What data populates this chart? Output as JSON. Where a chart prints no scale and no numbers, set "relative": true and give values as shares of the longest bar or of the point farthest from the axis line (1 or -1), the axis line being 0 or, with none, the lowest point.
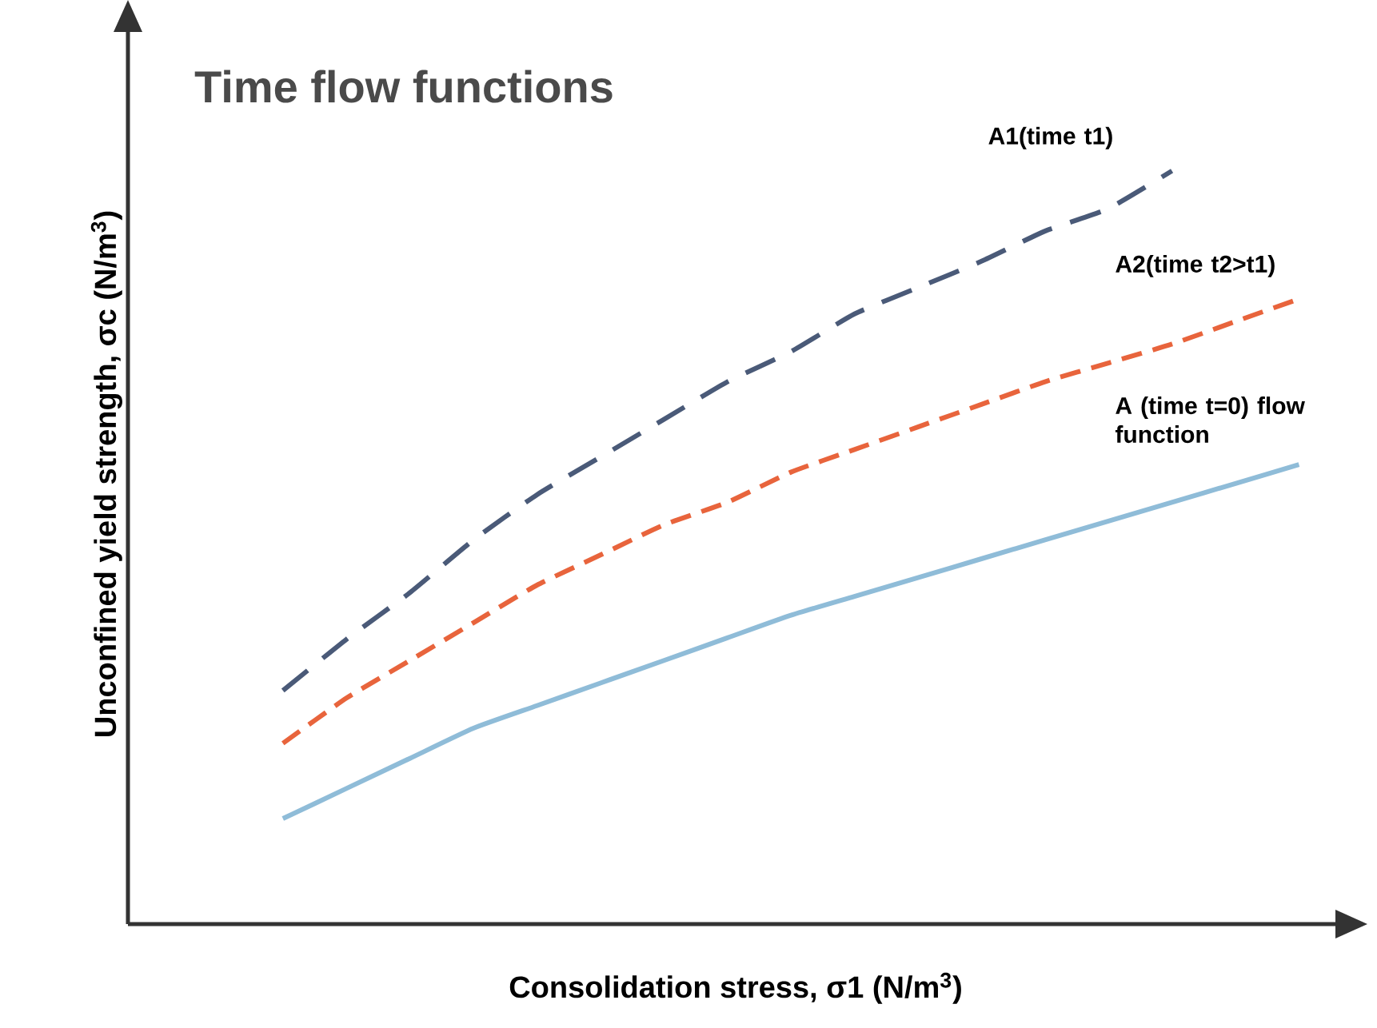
{
  "chart_data": {
    "type": "line",
    "title": "Time flow functions",
    "xlabel": "Consolidation stress, σ1 (N/m$^{3}$)",
    "ylabel": "Unconfined yield strength, σc (N/m$^{3}$)",
    "relative": true,
    "legend": false,
    "marker": "none",
    "categories": [
      null,
      null,
      null,
      null,
      null,
      null,
      null,
      null,
      null,
      null,
      null,
      null,
      null,
      null,
      null,
      null,
      null
    ],
    "series": [
      {
        "name": "A1(time t1)",
        "color": "#4a5a78",
        "line_style": "dashed",
        "values": [
          0.31,
          0.378,
          0.44,
          0.51,
          0.57,
          0.62,
          0.67,
          0.72,
          0.76,
          0.81,
          0.845,
          0.88,
          0.92,
          0.95,
          1.0,
          null,
          null
        ]
      },
      {
        "name": "A2(time t2>t1)",
        "color": "#e8643c",
        "line_style": "dashed",
        "values": [
          0.24,
          0.3,
          0.35,
          0.4,
          0.45,
          0.49,
          0.53,
          0.56,
          0.6,
          0.63,
          0.66,
          0.69,
          0.72,
          0.745,
          0.77,
          0.8,
          0.83
        ]
      },
      {
        "name": "A (time t=0) flow function",
        "color": "#8fbcd8",
        "line_style": "solid",
        "values": [
          0.14,
          0.18,
          0.22,
          0.26,
          0.29,
          0.32,
          0.35,
          0.38,
          0.41,
          0.435,
          0.46,
          0.485,
          0.51,
          0.535,
          0.56,
          0.585,
          0.61
        ]
      }
    ]
  }
}
